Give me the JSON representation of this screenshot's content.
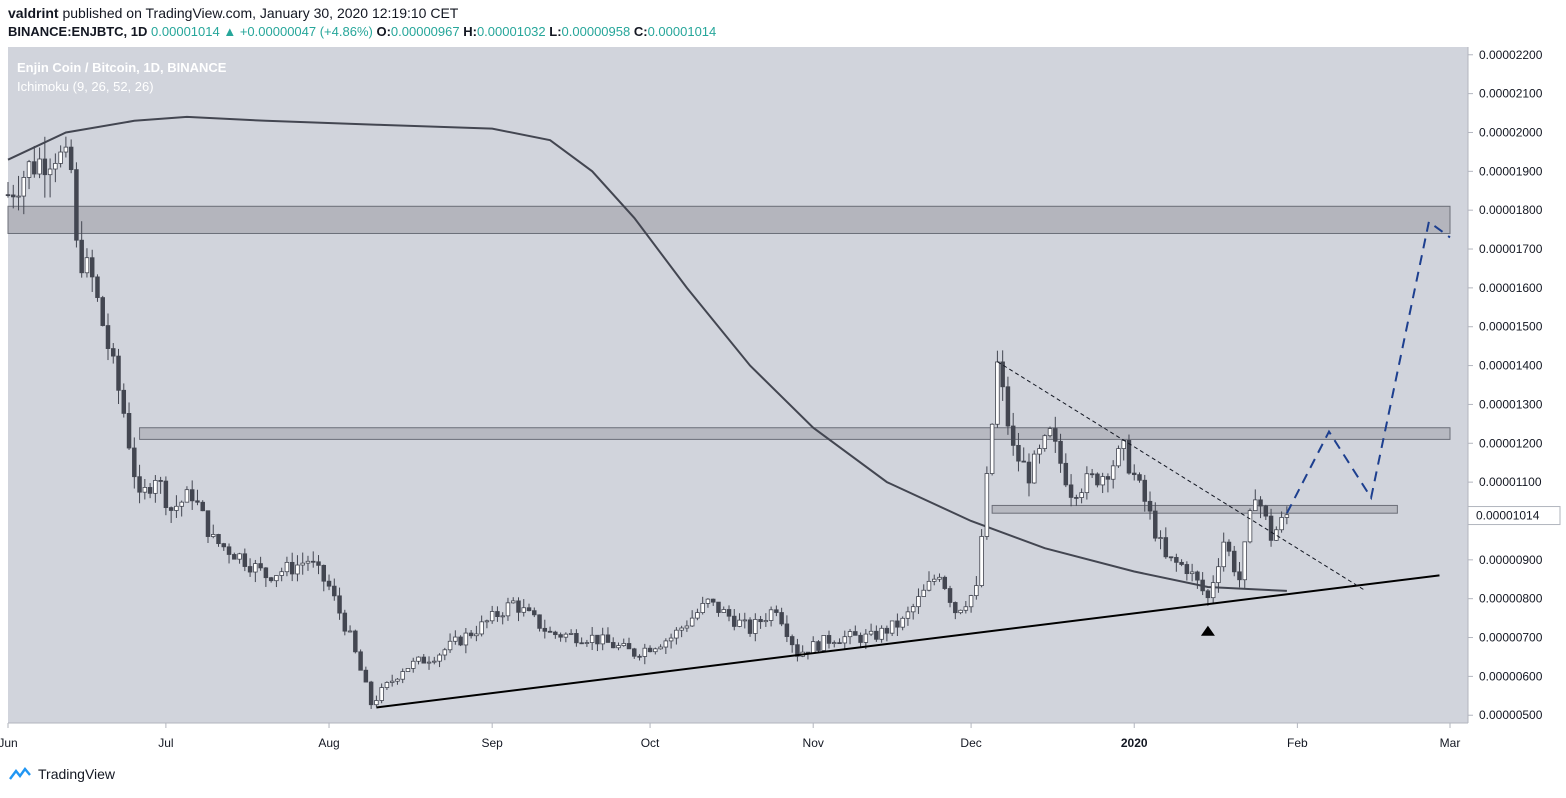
{
  "header": {
    "author": "valdrint",
    "published_text": "published on TradingView.com, January 30, 2020 12:19:10 CET",
    "symbol": "BINANCE:ENJBTC, 1D",
    "last": "0.00001014",
    "change": "+0.00000047 (+4.86%)",
    "o_label": "O:",
    "o_value": "0.00000967",
    "h_label": "H:",
    "h_value": "0.00001032",
    "l_label": "L:",
    "l_value": "0.00000958",
    "c_label": "C:",
    "c_value": "0.00001014"
  },
  "chart_data": {
    "type": "candlestick",
    "title": "Enjin Coin / Bitcoin, 1D, BINANCE",
    "indicator": "Ichimoku (9, 26, 52, 26)",
    "x_ticks": [
      "Jun",
      "Jul",
      "Aug",
      "Sep",
      "Oct",
      "Nov",
      "Dec",
      "2020",
      "Feb",
      "Mar"
    ],
    "y_ticks": [
      "0.00002200",
      "0.00002100",
      "0.00002000",
      "0.00001900",
      "0.00001800",
      "0.00001700",
      "0.00001600",
      "0.00001500",
      "0.00001400",
      "0.00001300",
      "0.00001200",
      "0.00001100",
      "0.00001000",
      "0.00000900",
      "0.00000800",
      "0.00000700",
      "0.00000600",
      "0.00000500"
    ],
    "ylim": [
      4.8e-06,
      2.22e-05
    ],
    "current_price_label": "0.00001014",
    "current_price": 1.014e-05,
    "price_path": [
      [
        "2019-06-01",
        1.84e-05
      ],
      [
        "2019-06-05",
        1.91e-05
      ],
      [
        "2019-06-10",
        1.95e-05
      ],
      [
        "2019-06-13",
        1.9e-05
      ],
      [
        "2019-06-14",
        1.7e-05
      ],
      [
        "2019-06-17",
        1.62e-05
      ],
      [
        "2019-06-20",
        1.45e-05
      ],
      [
        "2019-06-23",
        1.28e-05
      ],
      [
        "2019-06-26",
        1.05e-05
      ],
      [
        "2019-06-29",
        1.12e-05
      ],
      [
        "2019-07-02",
        1.03e-05
      ],
      [
        "2019-07-06",
        1.07e-05
      ],
      [
        "2019-07-10",
        9.5e-06
      ],
      [
        "2019-07-15",
        9.1e-06
      ],
      [
        "2019-07-20",
        8.6e-06
      ],
      [
        "2019-07-25",
        8.8e-06
      ],
      [
        "2019-07-28",
        9e-06
      ],
      [
        "2019-08-01",
        8.3e-06
      ],
      [
        "2019-08-05",
        7e-06
      ],
      [
        "2019-08-09",
        5.3e-06
      ],
      [
        "2019-08-15",
        6.2e-06
      ],
      [
        "2019-08-22",
        6.6e-06
      ],
      [
        "2019-08-30",
        7.3e-06
      ],
      [
        "2019-09-05",
        7.9e-06
      ],
      [
        "2019-09-12",
        7.1e-06
      ],
      [
        "2019-09-20",
        7e-06
      ],
      [
        "2019-09-28",
        6.6e-06
      ],
      [
        "2019-10-05",
        7e-06
      ],
      [
        "2019-10-12",
        7.9e-06
      ],
      [
        "2019-10-20",
        7.2e-06
      ],
      [
        "2019-10-25",
        7.8e-06
      ],
      [
        "2019-10-29",
        6.6e-06
      ],
      [
        "2019-11-05",
        7e-06
      ],
      [
        "2019-11-12",
        7e-06
      ],
      [
        "2019-11-18",
        7.4e-06
      ],
      [
        "2019-11-25",
        8.7e-06
      ],
      [
        "2019-11-28",
        7.7e-06
      ],
      [
        "2019-12-02",
        8.2e-06
      ],
      [
        "2019-12-04",
        1.1e-05
      ],
      [
        "2019-12-06",
        1.4e-05
      ],
      [
        "2019-12-09",
        1.18e-05
      ],
      [
        "2019-12-12",
        1.12e-05
      ],
      [
        "2019-12-16",
        1.22e-05
      ],
      [
        "2019-12-20",
        1.08e-05
      ],
      [
        "2019-12-26",
        1.12e-05
      ],
      [
        "2019-12-30",
        1.18e-05
      ],
      [
        "2020-01-03",
        1.05e-05
      ],
      [
        "2020-01-07",
        9e-06
      ],
      [
        "2020-01-11",
        8.8e-06
      ],
      [
        "2020-01-15",
        8e-06
      ],
      [
        "2020-01-18",
        9.5e-06
      ],
      [
        "2020-01-21",
        8.5e-06
      ],
      [
        "2020-01-24",
        1.08e-05
      ],
      [
        "2020-01-27",
        9.6e-06
      ],
      [
        "2020-01-30",
        1.014e-05
      ]
    ],
    "ma_path": [
      [
        "2019-06-01",
        1.93e-05
      ],
      [
        "2019-06-12",
        2e-05
      ],
      [
        "2019-06-25",
        2.03e-05
      ],
      [
        "2019-07-05",
        2.04e-05
      ],
      [
        "2019-07-20",
        2.03e-05
      ],
      [
        "2019-08-10",
        2.02e-05
      ],
      [
        "2019-09-01",
        2.01e-05
      ],
      [
        "2019-09-12",
        1.98e-05
      ],
      [
        "2019-09-20",
        1.9e-05
      ],
      [
        "2019-09-28",
        1.78e-05
      ],
      [
        "2019-10-08",
        1.6e-05
      ],
      [
        "2019-10-20",
        1.4e-05
      ],
      [
        "2019-11-01",
        1.24e-05
      ],
      [
        "2019-11-15",
        1.1e-05
      ],
      [
        "2019-12-01",
        1e-05
      ],
      [
        "2019-12-15",
        9.3e-06
      ],
      [
        "2020-01-01",
        8.7e-06
      ],
      [
        "2020-01-15",
        8.3e-06
      ],
      [
        "2020-01-30",
        8.2e-06
      ]
    ],
    "resistance_zones": [
      {
        "from": "2019-06-01",
        "to": "2020-03-01",
        "low": 1.74e-05,
        "high": 1.81e-05
      },
      {
        "from": "2019-06-26",
        "to": "2020-03-01",
        "low": 1.21e-05,
        "high": 1.24e-05
      },
      {
        "from": "2019-12-05",
        "to": "2020-02-20",
        "low": 1.02e-05,
        "high": 1.04e-05
      }
    ],
    "ascending_support": {
      "from": [
        "2019-08-10",
        5.2e-06
      ],
      "to": [
        "2020-02-28",
        8.6e-06
      ]
    },
    "descending_resistance": {
      "from": [
        "2019-12-06",
        1.41e-05
      ],
      "to": [
        "2020-02-14",
        8.2e-06
      ]
    },
    "projection": [
      [
        "2020-01-30",
        1.02e-05
      ],
      [
        "2020-02-07",
        1.23e-05
      ],
      [
        "2020-02-15",
        1.06e-05
      ],
      [
        "2020-02-26",
        1.77e-05
      ],
      [
        "2020-03-01",
        1.73e-05
      ]
    ],
    "bottom_marker_date": "2020-01-15",
    "colors": {
      "background": "#d1d4dc",
      "up": "#ffffff",
      "down": "#434651",
      "ma": "#434651",
      "zone": "#9598a1",
      "projection": "#1d3f8f",
      "price_label": "#ffffff"
    }
  },
  "footer": {
    "brand": "TradingView"
  }
}
